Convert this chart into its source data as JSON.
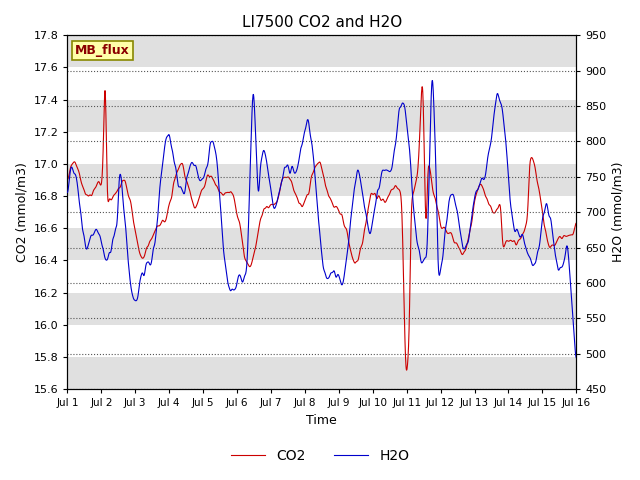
{
  "title": "LI7500 CO2 and H2O",
  "xlabel": "Time",
  "ylabel_left": "CO2 (mmol/m3)",
  "ylabel_right": "H2O (mmol/m3)",
  "co2_ylim": [
    15.6,
    17.8
  ],
  "h2o_ylim": [
    450,
    950
  ],
  "co2_color": "#cc0000",
  "h2o_color": "#0000cc",
  "co2_linewidth": 0.8,
  "h2o_linewidth": 0.8,
  "background_color": "#ffffff",
  "band_color": "#e0e0e0",
  "legend_label_co2": "CO2",
  "legend_label_h2o": "H2O",
  "annotation_text": "MB_flux",
  "annotation_bg": "#ffffaa",
  "annotation_border": "#888800",
  "x_tick_labels": [
    "Jul 1",
    "Jul 2",
    "Jul 3",
    "Jul 4",
    "Jul 5",
    "Jul 6",
    "Jul 7",
    "Jul 8",
    "Jul 9",
    "Jul 10",
    "Jul 11",
    "Jul 12",
    "Jul 13",
    "Jul 14",
    "Jul 15",
    "Jul 16"
  ],
  "yticks_left": [
    15.6,
    15.8,
    16.0,
    16.2,
    16.4,
    16.6,
    16.8,
    17.0,
    17.2,
    17.4,
    17.6,
    17.8
  ],
  "yticks_right": [
    450,
    500,
    550,
    600,
    650,
    700,
    750,
    800,
    850,
    900,
    950
  ],
  "n_points": 2000
}
